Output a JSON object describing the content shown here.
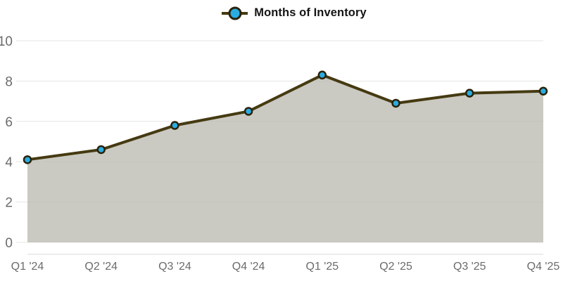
{
  "legend": {
    "label": "Months of Inventory"
  },
  "colors": {
    "line": "#453a11",
    "marker_fill": "#2aace2",
    "marker_stroke": "#2a2209",
    "area_fill": "rgba(189,188,179,0.8)",
    "grid": "#e5e5e5",
    "axis": "#d9d9d9",
    "tick_text": "#6b6b6b",
    "legend_text": "#141414"
  },
  "chart_data": {
    "type": "area",
    "title": "",
    "legend_entries": [
      "Months of Inventory"
    ],
    "legend_position": "top-center",
    "categories": [
      "Q1 '24",
      "Q2 '24",
      "Q3 '24",
      "Q4 '24",
      "Q1 '25",
      "Q2 '25",
      "Q3 '25",
      "Q4 '25"
    ],
    "series": [
      {
        "name": "Months of Inventory",
        "values": [
          4.1,
          4.6,
          5.8,
          6.5,
          8.3,
          6.9,
          7.4,
          7.5
        ]
      }
    ],
    "xlabel": "",
    "ylabel": "",
    "ylim": [
      0,
      10
    ],
    "yticks": [
      0,
      2,
      4,
      6,
      8,
      10
    ],
    "grid": true,
    "marker": "circle"
  }
}
